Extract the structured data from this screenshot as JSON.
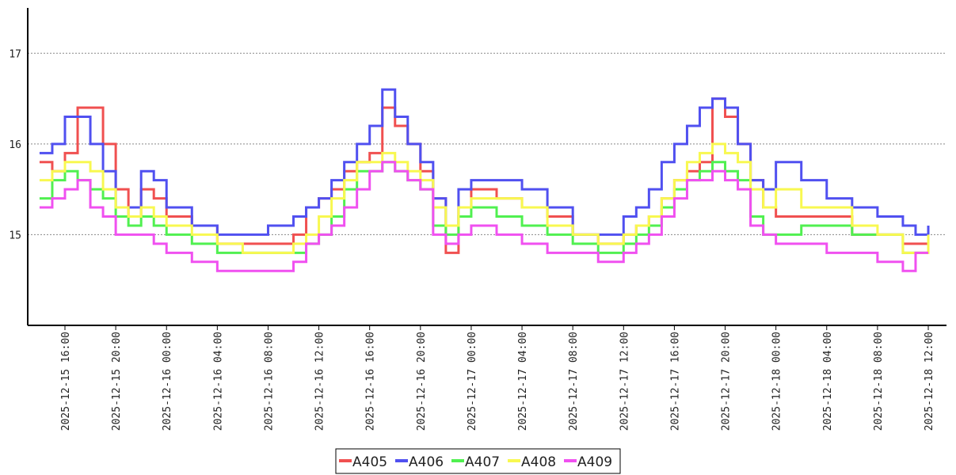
{
  "chart_data": {
    "type": "line",
    "title": "",
    "xlabel": "",
    "ylabel": "",
    "ylim": [
      14.0,
      17.5
    ],
    "yticks": [
      15,
      16,
      17
    ],
    "y_grid": true,
    "x_grid": false,
    "legend_position": "bottom-center",
    "xticks": [
      "2025-12-15 16:00",
      "2025-12-15 20:00",
      "2025-12-16 00:00",
      "2025-12-16 04:00",
      "2025-12-16 08:00",
      "2025-12-16 12:00",
      "2025-12-16 16:00",
      "2025-12-16 20:00",
      "2025-12-17 00:00",
      "2025-12-17 04:00",
      "2025-12-17 08:00",
      "2025-12-17 12:00",
      "2025-12-17 16:00",
      "2025-12-17 20:00",
      "2025-12-18 00:00",
      "2025-12-18 04:00",
      "2025-12-18 08:00",
      "2025-12-18 12:00"
    ],
    "x": [
      "2025-12-15 14:00",
      "2025-12-15 15:00",
      "2025-12-15 16:00",
      "2025-12-15 17:00",
      "2025-12-15 18:00",
      "2025-12-15 19:00",
      "2025-12-15 20:00",
      "2025-12-15 21:00",
      "2025-12-15 22:00",
      "2025-12-15 23:00",
      "2025-12-16 00:00",
      "2025-12-16 02:00",
      "2025-12-16 04:00",
      "2025-12-16 06:00",
      "2025-12-16 08:00",
      "2025-12-16 10:00",
      "2025-12-16 11:00",
      "2025-12-16 12:00",
      "2025-12-16 13:00",
      "2025-12-16 14:00",
      "2025-12-16 15:00",
      "2025-12-16 16:00",
      "2025-12-16 17:00",
      "2025-12-16 18:00",
      "2025-12-16 19:00",
      "2025-12-16 20:00",
      "2025-12-16 21:00",
      "2025-12-16 22:00",
      "2025-12-16 23:00",
      "2025-12-17 00:00",
      "2025-12-17 02:00",
      "2025-12-17 04:00",
      "2025-12-17 06:00",
      "2025-12-17 08:00",
      "2025-12-17 10:00",
      "2025-12-17 12:00",
      "2025-12-17 13:00",
      "2025-12-17 14:00",
      "2025-12-17 15:00",
      "2025-12-17 16:00",
      "2025-12-17 17:00",
      "2025-12-17 18:00",
      "2025-12-17 19:00",
      "2025-12-17 20:00",
      "2025-12-17 21:00",
      "2025-12-17 22:00",
      "2025-12-17 23:00",
      "2025-12-18 00:00",
      "2025-12-18 02:00",
      "2025-12-18 04:00",
      "2025-12-18 06:00",
      "2025-12-18 08:00",
      "2025-12-18 10:00",
      "2025-12-18 11:00",
      "2025-12-18 12:00"
    ],
    "series": [
      {
        "name": "A405",
        "color": "#f05050",
        "values": [
          15.8,
          15.7,
          15.9,
          16.4,
          16.4,
          16.0,
          15.5,
          15.2,
          15.5,
          15.4,
          15.2,
          15.1,
          14.9,
          14.9,
          14.9,
          15.0,
          15.3,
          15.4,
          15.5,
          15.7,
          15.8,
          15.9,
          16.4,
          16.2,
          16.0,
          15.7,
          15.4,
          14.8,
          15.3,
          15.5,
          15.4,
          15.3,
          15.2,
          15.0,
          14.9,
          15.0,
          15.1,
          15.2,
          15.4,
          15.6,
          15.7,
          15.8,
          16.5,
          16.3,
          16.0,
          15.6,
          15.3,
          15.2,
          15.2,
          15.2,
          15.0,
          15.0,
          14.9,
          14.9,
          14.9
        ]
      },
      {
        "name": "A406",
        "color": "#5050f0",
        "values": [
          15.9,
          16.0,
          16.3,
          16.3,
          16.0,
          15.7,
          15.3,
          15.3,
          15.7,
          15.6,
          15.3,
          15.1,
          15.0,
          15.0,
          15.1,
          15.2,
          15.3,
          15.4,
          15.6,
          15.8,
          16.0,
          16.2,
          16.6,
          16.3,
          16.0,
          15.8,
          15.4,
          15.1,
          15.5,
          15.6,
          15.6,
          15.5,
          15.3,
          15.0,
          15.0,
          15.2,
          15.3,
          15.5,
          15.8,
          16.0,
          16.2,
          16.4,
          16.5,
          16.4,
          16.0,
          15.6,
          15.5,
          15.8,
          15.6,
          15.4,
          15.3,
          15.2,
          15.1,
          15.0,
          15.1
        ]
      },
      {
        "name": "A407",
        "color": "#50f050",
        "values": [
          15.4,
          15.6,
          15.7,
          15.6,
          15.5,
          15.4,
          15.2,
          15.1,
          15.2,
          15.1,
          15.0,
          14.9,
          14.8,
          14.8,
          14.8,
          14.8,
          14.9,
          15.0,
          15.2,
          15.5,
          15.7,
          15.7,
          15.8,
          15.7,
          15.6,
          15.5,
          15.1,
          15.0,
          15.2,
          15.3,
          15.2,
          15.1,
          15.0,
          14.9,
          14.8,
          14.9,
          15.0,
          15.1,
          15.3,
          15.5,
          15.6,
          15.7,
          15.8,
          15.7,
          15.6,
          15.2,
          15.0,
          15.0,
          15.1,
          15.1,
          15.0,
          15.0,
          14.8,
          14.8,
          14.8
        ]
      },
      {
        "name": "A408",
        "color": "#f8f850",
        "values": [
          15.6,
          15.7,
          15.8,
          15.8,
          15.7,
          15.5,
          15.3,
          15.2,
          15.3,
          15.2,
          15.1,
          15.0,
          14.9,
          14.8,
          14.8,
          14.9,
          15.0,
          15.2,
          15.4,
          15.6,
          15.8,
          15.8,
          15.9,
          15.8,
          15.7,
          15.6,
          15.3,
          15.1,
          15.3,
          15.4,
          15.4,
          15.3,
          15.1,
          15.0,
          14.9,
          15.0,
          15.1,
          15.2,
          15.4,
          15.6,
          15.8,
          15.9,
          16.0,
          15.9,
          15.8,
          15.5,
          15.3,
          15.5,
          15.3,
          15.3,
          15.1,
          15.0,
          14.8,
          14.8,
          15.0
        ]
      },
      {
        "name": "A409",
        "color": "#f050f0",
        "values": [
          15.3,
          15.4,
          15.5,
          15.6,
          15.3,
          15.2,
          15.0,
          15.0,
          15.0,
          14.9,
          14.8,
          14.7,
          14.6,
          14.6,
          14.6,
          14.7,
          14.9,
          15.0,
          15.1,
          15.3,
          15.5,
          15.7,
          15.8,
          15.7,
          15.6,
          15.5,
          15.0,
          14.9,
          15.0,
          15.1,
          15.0,
          14.9,
          14.8,
          14.8,
          14.7,
          14.8,
          14.9,
          15.0,
          15.2,
          15.4,
          15.6,
          15.6,
          15.7,
          15.6,
          15.5,
          15.1,
          15.0,
          14.9,
          14.9,
          14.8,
          14.8,
          14.7,
          14.6,
          14.8,
          14.8
        ]
      }
    ]
  }
}
